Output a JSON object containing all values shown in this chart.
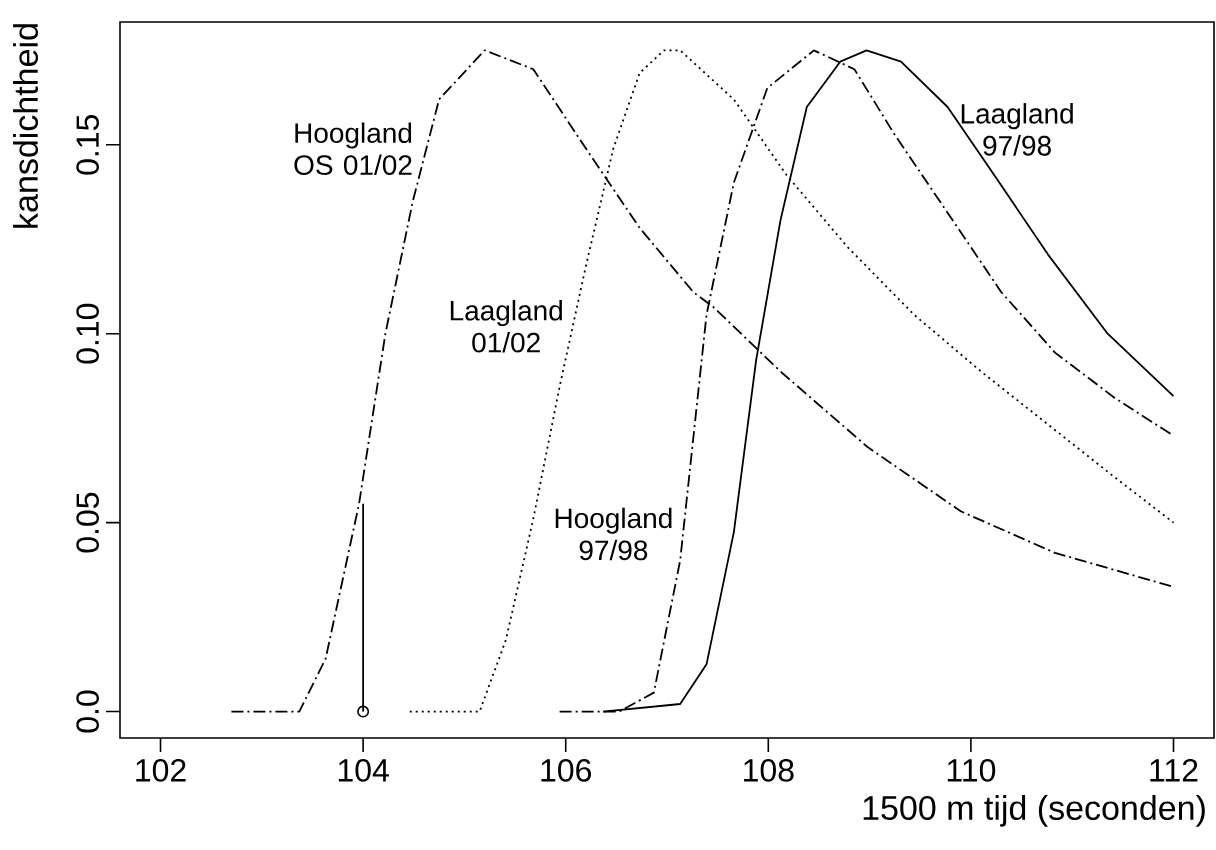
{
  "chart_data": {
    "type": "line",
    "xlabel": "1500 m tijd (seconden)",
    "ylabel": "kansdichtheid",
    "xlim": [
      101.6,
      112.4
    ],
    "ylim": [
      -0.007,
      0.1825
    ],
    "xticks": [
      102,
      104,
      106,
      108,
      110,
      112
    ],
    "yticks": [
      {
        "value": 0,
        "label": "0.0"
      },
      {
        "value": 0.05,
        "label": "0.05"
      },
      {
        "value": 0.1,
        "label": "0.10"
      },
      {
        "value": 0.15,
        "label": "0.15"
      }
    ],
    "grid": false,
    "marker": "none",
    "series": [
      {
        "name": "Hoogland OS 01/02",
        "line_style": "dashdot",
        "color": "#000000",
        "x": [
          102.7,
          103.37,
          103.63,
          103.96,
          104.22,
          104.49,
          104.75,
          105.2,
          105.68,
          106.2,
          106.73,
          107.26,
          107.46,
          108.12,
          108.98,
          109.9,
          110.83,
          112
        ],
        "values": [
          0,
          0,
          0.014,
          0.055,
          0.1,
          0.135,
          0.162,
          0.175,
          0.17,
          0.149,
          0.128,
          0.111,
          0.107,
          0.09,
          0.07,
          0.053,
          0.042,
          0.033
        ]
      },
      {
        "name": "Laagland 01/02",
        "line_style": "dotted",
        "color": "#000000",
        "x": [
          104.46,
          105.15,
          105.41,
          105.68,
          105.94,
          106.2,
          106.47,
          106.73,
          106.97,
          107.13,
          107.66,
          108.18,
          108.78,
          109.44,
          110.1,
          110.76,
          111.42,
          112
        ],
        "values": [
          0,
          0,
          0.019,
          0.051,
          0.086,
          0.118,
          0.149,
          0.169,
          0.175,
          0.175,
          0.162,
          0.142,
          0.123,
          0.105,
          0.09,
          0.076,
          0.062,
          0.05
        ]
      },
      {
        "name": "Hoogland 97/98",
        "line_style": "dashdot",
        "color": "#000000",
        "x": [
          105.94,
          106.53,
          106.87,
          107.13,
          107.39,
          107.66,
          107.99,
          108.45,
          108.85,
          109.24,
          109.77,
          110.3,
          110.83,
          111.42,
          112
        ],
        "values": [
          0,
          0,
          0.005,
          0.04,
          0.105,
          0.14,
          0.165,
          0.175,
          0.17,
          0.153,
          0.132,
          0.111,
          0.095,
          0.083,
          0.073
        ]
      },
      {
        "name": "Laagland 97/98",
        "line_style": "solid",
        "color": "#000000",
        "x": [
          106.37,
          107.13,
          107.39,
          107.66,
          107.88,
          108.12,
          108.38,
          108.71,
          108.97,
          109.31,
          109.77,
          110.23,
          110.76,
          111.35,
          112
        ],
        "values": [
          0,
          0.002,
          0.0125,
          0.0475,
          0.093,
          0.13,
          0.16,
          0.172,
          0.175,
          0.172,
          0.16,
          0.142,
          0.121,
          0.1,
          0.0835
        ]
      },
      {
        "line_style": "solid",
        "color": "#000000",
        "x": [
          104,
          104
        ],
        "values": [
          0,
          0.055
        ]
      },
      {
        "type": "scatter",
        "marker": "circle",
        "color": "#000000",
        "x": [
          104
        ],
        "values": [
          0
        ]
      }
    ]
  }
}
